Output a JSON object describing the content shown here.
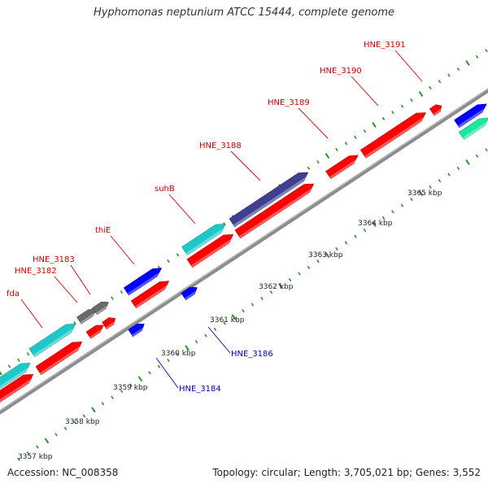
{
  "title": "Hyphomonas neptunium ATCC 15444, complete genome",
  "footer": {
    "accession": "Accession: NC_008358",
    "stats": "Topology: circular; Length: 3,705,021 bp; Genes: 3,552"
  },
  "colors": {
    "forward_cds": "#ff0000",
    "reverse_cds": "#0000ff",
    "purple_feature": "#3f3f8f",
    "cyan_feature": "#1ec8c8",
    "green_feature": "#1ee6a0",
    "gray_feature": "#6a6a6a",
    "backbone": "#8c8c8c",
    "tick": "#2f8f2f",
    "forward_label": "#d00000",
    "reverse_label": "#0000c8"
  },
  "scale_labels": [
    "3357 kbp",
    "3358 kbp",
    "3359 kbp",
    "3360 kbp",
    "3361 kbp",
    "3362 kbp",
    "3363 kbp",
    "3364 kbp",
    "3365 kbp"
  ],
  "gene_labels": [
    {
      "name": "fda",
      "strand": "forward"
    },
    {
      "name": "HNE_3182",
      "strand": "forward"
    },
    {
      "name": "HNE_3183",
      "strand": "forward"
    },
    {
      "name": "thiE",
      "strand": "forward"
    },
    {
      "name": "suhB",
      "strand": "forward"
    },
    {
      "name": "HNE_3188",
      "strand": "forward"
    },
    {
      "name": "HNE_3189",
      "strand": "forward"
    },
    {
      "name": "HNE_3190",
      "strand": "forward"
    },
    {
      "name": "HNE_3191",
      "strand": "forward"
    },
    {
      "name": "HNE_3184",
      "strand": "reverse"
    },
    {
      "name": "HNE_3186",
      "strand": "reverse"
    }
  ]
}
